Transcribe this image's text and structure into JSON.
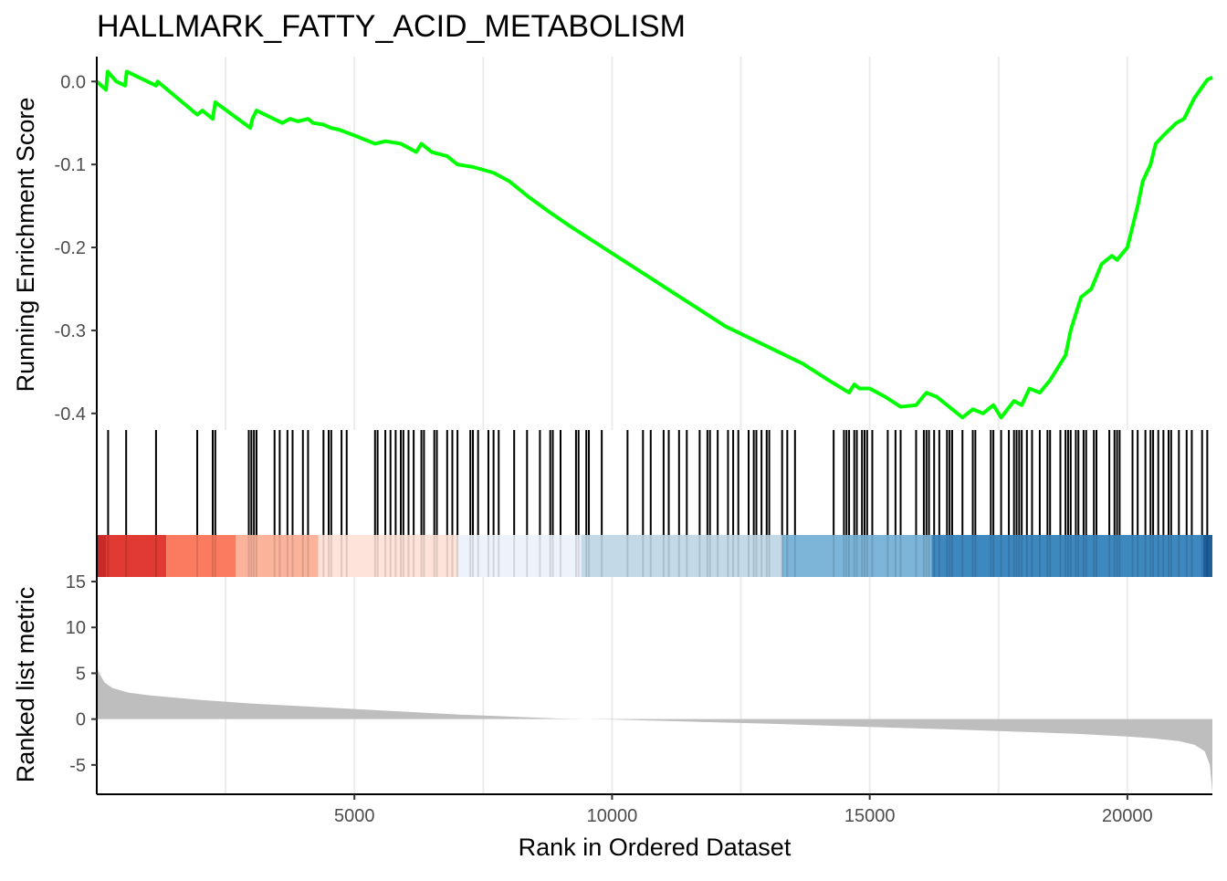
{
  "chart_data": {
    "type": "line",
    "title": "HALLMARK_FATTY_ACID_METABOLISM",
    "xlabel": "Rank in Ordered Dataset",
    "xlim": [
      0,
      21650
    ],
    "x_ticks": [
      5000,
      10000,
      15000,
      20000
    ],
    "x_tick_labels": [
      "5000",
      "10000",
      "15000",
      "20000"
    ],
    "x_gridlines": [
      2500,
      5000,
      7500,
      10000,
      12500,
      15000,
      17500,
      20000
    ],
    "grid": true,
    "panels": {
      "running_es": {
        "ylabel": "Running Enrichment Score",
        "ylim": [
          -0.42,
          0.03
        ],
        "y_ticks": [
          0.0,
          -0.1,
          -0.2,
          -0.3,
          -0.4
        ],
        "y_tick_labels": [
          "0.0",
          "-0.1",
          "-0.2",
          "-0.3",
          "-0.4"
        ],
        "line_color": "#00FF00",
        "series": [
          {
            "x": [
              0,
              180,
              210,
              380,
              550,
              580,
              1150,
              1180,
              1950,
              2050,
              2250,
              2300,
              2980,
              3020,
              3100,
              3600,
              3750,
              3900,
              4100,
              4200,
              4400,
              4550,
              4700,
              5000,
              5400,
              5600,
              5900,
              6200,
              6300,
              6500,
              6800,
              7000,
              7300,
              7700,
              8000,
              8400,
              8800,
              9200,
              9700,
              10200,
              10700,
              11200,
              11700,
              12200,
              12700,
              13200,
              13700,
              14200,
              14600,
              14700,
              14800,
              15000,
              15300,
              15600,
              15900,
              16100,
              16300,
              16500,
              16800,
              17000,
              17200,
              17400,
              17550,
              17800,
              17950,
              18100,
              18300,
              18500,
              18600,
              18800,
              18900,
              19100,
              19300,
              19500,
              19700,
              19800,
              20000,
              20200,
              20300,
              20450,
              20550,
              20700,
              20950,
              21100,
              21300,
              21550,
              21650
            ],
            "y": [
              0.0,
              -0.01,
              0.012,
              0.0,
              -0.005,
              0.012,
              -0.005,
              0.0,
              -0.04,
              -0.035,
              -0.045,
              -0.025,
              -0.056,
              -0.045,
              -0.035,
              -0.05,
              -0.045,
              -0.048,
              -0.045,
              -0.05,
              -0.052,
              -0.056,
              -0.058,
              -0.065,
              -0.075,
              -0.072,
              -0.075,
              -0.085,
              -0.075,
              -0.085,
              -0.09,
              -0.1,
              -0.103,
              -0.11,
              -0.12,
              -0.14,
              -0.158,
              -0.175,
              -0.195,
              -0.215,
              -0.235,
              -0.255,
              -0.275,
              -0.295,
              -0.31,
              -0.325,
              -0.34,
              -0.36,
              -0.375,
              -0.365,
              -0.37,
              -0.37,
              -0.38,
              -0.392,
              -0.39,
              -0.375,
              -0.38,
              -0.39,
              -0.405,
              -0.395,
              -0.4,
              -0.39,
              -0.405,
              -0.385,
              -0.39,
              -0.37,
              -0.375,
              -0.36,
              -0.35,
              -0.33,
              -0.3,
              -0.26,
              -0.25,
              -0.22,
              -0.21,
              -0.215,
              -0.2,
              -0.15,
              -0.12,
              -0.1,
              -0.075,
              -0.065,
              -0.05,
              -0.045,
              -0.02,
              0.002,
              0.005
            ]
          }
        ]
      },
      "gene_hits": {
        "color": "#000000",
        "positions": [
          220,
          570,
          1150,
          1950,
          2250,
          2300,
          2950,
          3000,
          3050,
          3100,
          3450,
          3550,
          3700,
          3800,
          4000,
          4100,
          4400,
          4500,
          4550,
          4750,
          4850,
          5400,
          5450,
          5600,
          5700,
          5800,
          5900,
          5950,
          6050,
          6150,
          6300,
          6350,
          6550,
          6600,
          6800,
          6900,
          7000,
          7250,
          7300,
          7400,
          7600,
          7700,
          7800,
          8100,
          8350,
          8600,
          8800,
          8850,
          9000,
          9300,
          9350,
          9500,
          9550,
          9800,
          10300,
          10600,
          10750,
          11000,
          11100,
          11300,
          11450,
          11700,
          11850,
          11900,
          12050,
          12250,
          12350,
          12450,
          12650,
          12750,
          12800,
          12900,
          13000,
          13050,
          13300,
          13400,
          13550,
          14300,
          14500,
          14550,
          14600,
          14700,
          14750,
          14850,
          14900,
          14950,
          15050,
          15350,
          15500,
          15600,
          15900,
          16050,
          16100,
          16150,
          16250,
          16350,
          16500,
          16550,
          16600,
          16800,
          17000,
          17050,
          17350,
          17400,
          17550,
          17700,
          17800,
          17850,
          17900,
          17950,
          18050,
          18150,
          18300,
          18450,
          18500,
          18700,
          18800,
          18850,
          18900,
          19000,
          19050,
          19150,
          19200,
          19350,
          19400,
          19650,
          19750,
          19800,
          19850,
          20100,
          20200,
          20350,
          20450,
          20500,
          20600,
          20700,
          20800,
          20850,
          21000,
          21150,
          21250,
          21450,
          21550
        ]
      },
      "color_band": {
        "segments": [
          {
            "start": 0,
            "end": 1350,
            "color": "#E03A33"
          },
          {
            "start": 1350,
            "end": 2700,
            "color": "#FB7B60"
          },
          {
            "start": 2700,
            "end": 4300,
            "color": "#FCB39B"
          },
          {
            "start": 4300,
            "end": 7000,
            "color": "#FDE3D9"
          },
          {
            "start": 7000,
            "end": 9400,
            "color": "#EDF2FB"
          },
          {
            "start": 9400,
            "end": 13300,
            "color": "#C3D9E8"
          },
          {
            "start": 13300,
            "end": 16200,
            "color": "#7DB5D9"
          },
          {
            "start": 16200,
            "end": 21650,
            "color": "#3E88C0"
          }
        ],
        "edge_colors": {
          "left": "#C72A29",
          "right": "#1E5E9B"
        }
      },
      "ranked_metric": {
        "ylabel": "Ranked list metric",
        "ylim": [
          -8.2,
          15.5
        ],
        "y_ticks": [
          15,
          10,
          5,
          0,
          -5
        ],
        "y_tick_labels": [
          "15",
          "10",
          "5",
          "0",
          "-5"
        ],
        "fill_color": "#BEBEBE",
        "x": [
          0,
          50,
          150,
          300,
          600,
          1000,
          2000,
          3000,
          5000,
          7000,
          9000,
          10000,
          11000,
          13000,
          15000,
          17000,
          19000,
          20000,
          20500,
          21000,
          21300,
          21500,
          21600,
          21650
        ],
        "y": [
          5.5,
          5.0,
          4.0,
          3.4,
          2.9,
          2.6,
          2.1,
          1.7,
          1.1,
          0.5,
          0.05,
          -0.05,
          -0.2,
          -0.5,
          -0.85,
          -1.2,
          -1.6,
          -1.9,
          -2.1,
          -2.4,
          -2.8,
          -3.5,
          -5.0,
          -8.0
        ]
      }
    }
  }
}
